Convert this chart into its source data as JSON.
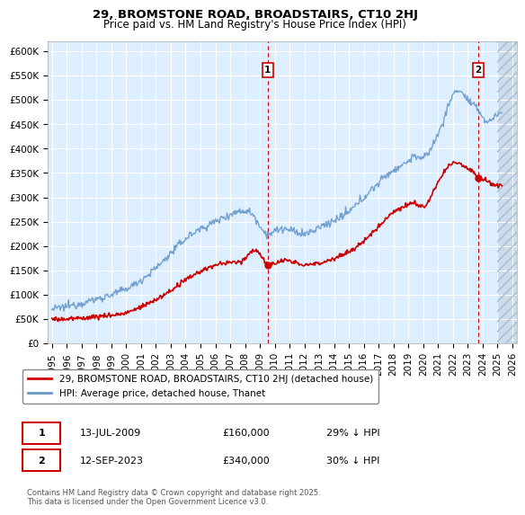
{
  "title1": "29, BROMSTONE ROAD, BROADSTAIRS, CT10 2HJ",
  "title2": "Price paid vs. HM Land Registry's House Price Index (HPI)",
  "ylim": [
    0,
    620000
  ],
  "ytick_vals": [
    0,
    50000,
    100000,
    150000,
    200000,
    250000,
    300000,
    350000,
    400000,
    450000,
    500000,
    550000,
    600000
  ],
  "xlim_start": 1994.7,
  "xlim_end": 2026.3,
  "xtick_years": [
    1995,
    1996,
    1997,
    1998,
    1999,
    2000,
    2001,
    2002,
    2003,
    2004,
    2005,
    2006,
    2007,
    2008,
    2009,
    2010,
    2011,
    2012,
    2013,
    2014,
    2015,
    2016,
    2017,
    2018,
    2019,
    2020,
    2021,
    2022,
    2023,
    2024,
    2025,
    2026
  ],
  "bg_color": "#ddeeff",
  "grid_color": "#ffffff",
  "line_hpi_color": "#6699cc",
  "line_price_color": "#cc0000",
  "sale1_x": 2009.53,
  "sale1_y": 160000,
  "sale1_label": "1",
  "sale1_date": "13-JUL-2009",
  "sale1_price": "£160,000",
  "sale1_hpi": "29% ↓ HPI",
  "sale2_x": 2023.71,
  "sale2_y": 340000,
  "sale2_label": "2",
  "sale2_date": "12-SEP-2023",
  "sale2_price": "£340,000",
  "sale2_hpi": "30% ↓ HPI",
  "legend_label1": "29, BROMSTONE ROAD, BROADSTAIRS, CT10 2HJ (detached house)",
  "legend_label2": "HPI: Average price, detached house, Thanet",
  "footnote": "Contains HM Land Registry data © Crown copyright and database right 2025.\nThis data is licensed under the Open Government Licence v3.0."
}
